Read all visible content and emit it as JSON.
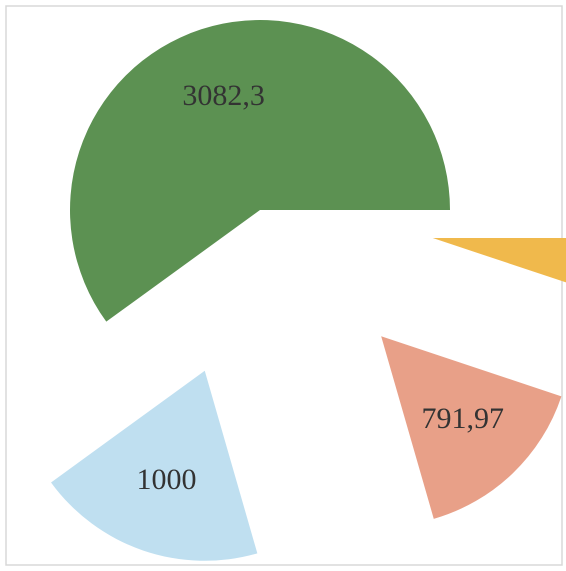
{
  "chart_data": {
    "type": "pie",
    "values": [
      263,
      791.97,
      1000,
      3082.3
    ],
    "value_labels": [
      null,
      "791,97",
      "1000",
      "3082,3"
    ],
    "colors": [
      "#f0b94c",
      "#e8a088",
      "#bfdff0",
      "#5c9152"
    ],
    "start_angle": 0,
    "direction": "clockwise"
  }
}
